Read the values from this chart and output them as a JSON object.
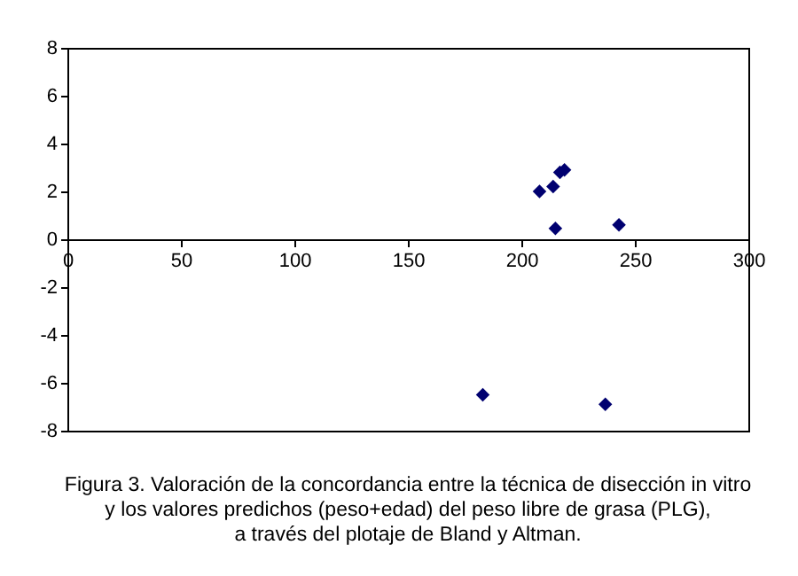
{
  "chart_data": {
    "type": "scatter",
    "title": "Figura 3. Valoración de la concordancia entre  la técnica de disección in vitro\ny los valores predichos (peso+edad) del peso libre de grasa (PLG),\na través del plotaje de Bland y Altman.",
    "x": [
      208,
      214,
      217,
      219,
      215,
      243,
      183,
      237
    ],
    "series": [
      {
        "color": "#000070",
        "values": [
          2.0,
          2.2,
          2.8,
          2.9,
          0.45,
          0.6,
          -6.5,
          -6.9
        ]
      }
    ],
    "xlim": [
      0,
      300
    ],
    "xticks": [
      0,
      50,
      100,
      150,
      200,
      250,
      300
    ],
    "ylim": [
      -8,
      8
    ],
    "yticks": [
      -8,
      -6,
      -4,
      -2,
      0,
      2,
      4,
      6,
      8
    ],
    "grid": false,
    "legend": false,
    "marker": "diamond"
  }
}
